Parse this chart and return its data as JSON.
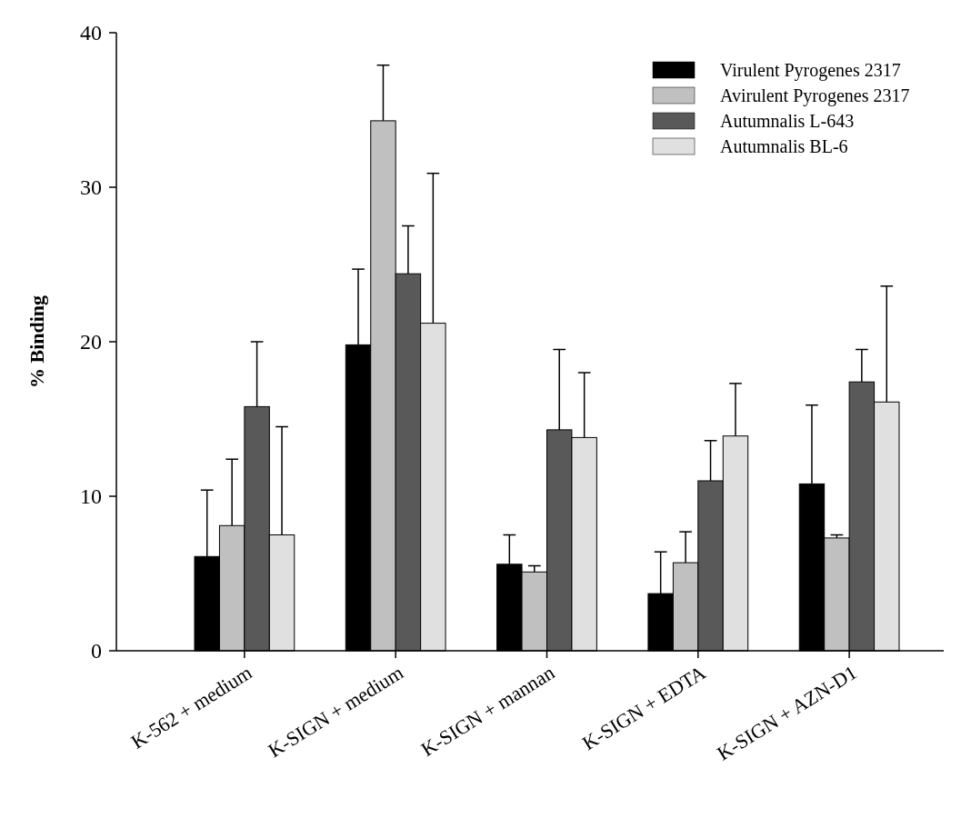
{
  "chart_data": {
    "type": "bar",
    "ylabel": "% Binding",
    "categories": [
      "K-562 + medium",
      "K-SIGN + medium",
      "K-SIGN + mannan",
      "K-SIGN + EDTA",
      "K-SIGN + AZN-D1"
    ],
    "series": [
      {
        "name": "Virulent Pyrogenes 2317",
        "color": "#000000",
        "values": [
          6.1,
          19.8,
          5.6,
          3.7,
          10.8
        ],
        "errors": [
          [
            6.1,
            10.4
          ],
          [
            19.8,
            24.7
          ],
          [
            5.6,
            7.5
          ],
          [
            3.7,
            6.4
          ],
          [
            10.8,
            15.9
          ]
        ]
      },
      {
        "name": "Avirulent Pyrogenes 2317",
        "color": "#c0c0c0",
        "values": [
          8.1,
          34.3,
          5.1,
          5.7,
          7.3
        ],
        "errors": [
          [
            8.1,
            12.4
          ],
          [
            34.3,
            37.9
          ],
          [
            5.1,
            5.5
          ],
          [
            5.7,
            7.7
          ],
          [
            7.3,
            7.5
          ]
        ]
      },
      {
        "name": "Autumnalis L-643",
        "color": "#595959",
        "values": [
          15.8,
          24.4,
          14.3,
          11.0,
          17.4
        ],
        "errors": [
          [
            15.8,
            20.0
          ],
          [
            24.4,
            27.5
          ],
          [
            14.3,
            19.5
          ],
          [
            11.0,
            13.6
          ],
          [
            17.4,
            19.5
          ]
        ]
      },
      {
        "name": "Autumnalis BL-6",
        "color": "#e0e0e0",
        "values": [
          7.5,
          21.2,
          13.8,
          13.9,
          16.1
        ],
        "errors": [
          [
            7.5,
            14.5
          ],
          [
            21.2,
            30.9
          ],
          [
            13.8,
            18.0
          ],
          [
            13.9,
            17.3
          ],
          [
            16.1,
            23.6
          ]
        ]
      }
    ],
    "ylim": [
      0,
      40
    ],
    "yticks": [
      0,
      10,
      20,
      30,
      40
    ],
    "grid": false,
    "legend": "top right"
  }
}
